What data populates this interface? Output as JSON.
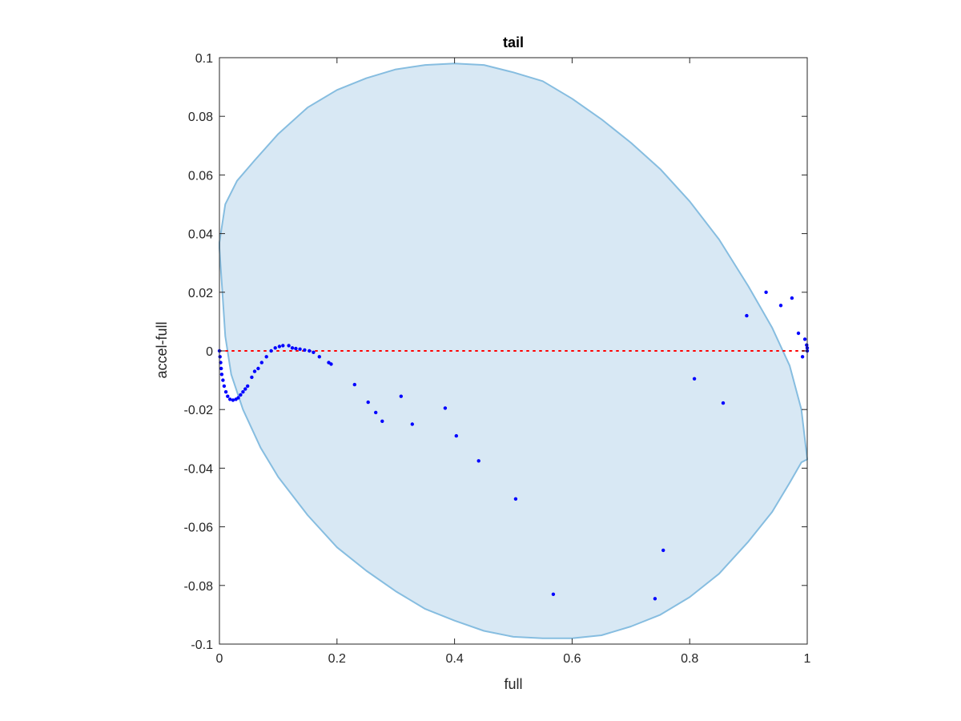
{
  "chart_data": {
    "type": "scatter",
    "title": "tail",
    "xlabel": "full",
    "ylabel": "accel-full",
    "xlim": [
      0,
      1
    ],
    "ylim": [
      -0.1,
      0.1
    ],
    "xticks": [
      0,
      0.2,
      0.4,
      0.6,
      0.8,
      1
    ],
    "xtick_labels": [
      "0",
      "0.2",
      "0.4",
      "0.6",
      "0.8",
      "1"
    ],
    "yticks": [
      -0.1,
      -0.08,
      -0.06,
      -0.04,
      -0.02,
      0,
      0.02,
      0.04,
      0.06,
      0.08,
      0.1
    ],
    "ytick_labels": [
      "-0.1",
      "-0.08",
      "-0.06",
      "-0.04",
      "-0.02",
      "0",
      "0.02",
      "0.04",
      "0.06",
      "0.08",
      "0.1"
    ],
    "grid": false,
    "colors": {
      "points": "#0000ff",
      "zero_line": "#ff0000",
      "region_fill": "#d8e8f4",
      "region_edge": "#86bde0",
      "axes": "#262626"
    },
    "zero_line": {
      "y": 0,
      "style": "dotted"
    },
    "region": {
      "shape": "closed-curve",
      "upper": [
        [
          0,
          0.037
        ],
        [
          0.01,
          0.05
        ],
        [
          0.03,
          0.058
        ],
        [
          0.06,
          0.065
        ],
        [
          0.1,
          0.074
        ],
        [
          0.15,
          0.083
        ],
        [
          0.2,
          0.089
        ],
        [
          0.25,
          0.093
        ],
        [
          0.3,
          0.096
        ],
        [
          0.35,
          0.0975
        ],
        [
          0.4,
          0.098
        ],
        [
          0.45,
          0.0975
        ],
        [
          0.5,
          0.095
        ],
        [
          0.55,
          0.092
        ],
        [
          0.6,
          0.086
        ],
        [
          0.65,
          0.079
        ],
        [
          0.7,
          0.071
        ],
        [
          0.75,
          0.062
        ],
        [
          0.8,
          0.051
        ],
        [
          0.85,
          0.038
        ],
        [
          0.9,
          0.022
        ],
        [
          0.94,
          0.008
        ],
        [
          0.97,
          -0.005
        ],
        [
          0.99,
          -0.02
        ],
        [
          1.0,
          -0.037
        ]
      ],
      "lower": [
        [
          0,
          0.035
        ],
        [
          0.005,
          0.02
        ],
        [
          0.01,
          0.005
        ],
        [
          0.02,
          -0.008
        ],
        [
          0.04,
          -0.02
        ],
        [
          0.07,
          -0.033
        ],
        [
          0.1,
          -0.043
        ],
        [
          0.15,
          -0.056
        ],
        [
          0.2,
          -0.067
        ],
        [
          0.25,
          -0.075
        ],
        [
          0.3,
          -0.082
        ],
        [
          0.35,
          -0.088
        ],
        [
          0.4,
          -0.092
        ],
        [
          0.45,
          -0.0955
        ],
        [
          0.5,
          -0.0975
        ],
        [
          0.55,
          -0.098
        ],
        [
          0.6,
          -0.098
        ],
        [
          0.65,
          -0.097
        ],
        [
          0.7,
          -0.094
        ],
        [
          0.75,
          -0.09
        ],
        [
          0.8,
          -0.084
        ],
        [
          0.85,
          -0.076
        ],
        [
          0.9,
          -0.065
        ],
        [
          0.94,
          -0.055
        ],
        [
          0.97,
          -0.045
        ],
        [
          0.99,
          -0.038
        ],
        [
          1.0,
          -0.037
        ]
      ]
    },
    "series": [
      {
        "marker": "point",
        "points": [
          [
            0.0,
            0.0
          ],
          [
            0.001,
            -0.002
          ],
          [
            0.002,
            -0.004
          ],
          [
            0.003,
            -0.006
          ],
          [
            0.004,
            -0.008
          ],
          [
            0.006,
            -0.01
          ],
          [
            0.008,
            -0.012
          ],
          [
            0.011,
            -0.014
          ],
          [
            0.014,
            -0.0155
          ],
          [
            0.018,
            -0.0165
          ],
          [
            0.023,
            -0.0168
          ],
          [
            0.028,
            -0.0165
          ],
          [
            0.032,
            -0.016
          ],
          [
            0.036,
            -0.015
          ],
          [
            0.04,
            -0.014
          ],
          [
            0.044,
            -0.013
          ],
          [
            0.048,
            -0.012
          ],
          [
            0.055,
            -0.009
          ],
          [
            0.06,
            -0.007
          ],
          [
            0.066,
            -0.006
          ],
          [
            0.072,
            -0.004
          ],
          [
            0.08,
            -0.002
          ],
          [
            0.088,
            0.0
          ],
          [
            0.095,
            0.001
          ],
          [
            0.102,
            0.0015
          ],
          [
            0.108,
            0.0018
          ],
          [
            0.118,
            0.0018
          ],
          [
            0.124,
            0.001
          ],
          [
            0.13,
            0.0008
          ],
          [
            0.137,
            0.0006
          ],
          [
            0.145,
            0.0003
          ],
          [
            0.153,
            0.0
          ],
          [
            0.16,
            -0.0005
          ],
          [
            0.17,
            -0.002
          ],
          [
            0.186,
            -0.004
          ],
          [
            0.19,
            -0.0045
          ],
          [
            0.23,
            -0.0115
          ],
          [
            0.253,
            -0.0175
          ],
          [
            0.266,
            -0.021
          ],
          [
            0.277,
            -0.024
          ],
          [
            0.309,
            -0.0155
          ],
          [
            0.328,
            -0.025
          ],
          [
            0.384,
            -0.0195
          ],
          [
            0.403,
            -0.029
          ],
          [
            0.441,
            -0.0375
          ],
          [
            0.504,
            -0.0505
          ],
          [
            0.568,
            -0.083
          ],
          [
            0.741,
            -0.0845
          ],
          [
            0.755,
            -0.068
          ],
          [
            0.808,
            -0.0095
          ],
          [
            0.857,
            -0.0178
          ],
          [
            0.897,
            0.012
          ],
          [
            0.93,
            0.02
          ],
          [
            0.955,
            0.0155
          ],
          [
            0.974,
            0.018
          ],
          [
            0.985,
            0.006
          ],
          [
            0.992,
            -0.002
          ],
          [
            0.996,
            0.004
          ],
          [
            0.999,
            0.002
          ],
          [
            1.0,
            0.001
          ],
          [
            1.0,
            0.0
          ]
        ]
      }
    ]
  }
}
